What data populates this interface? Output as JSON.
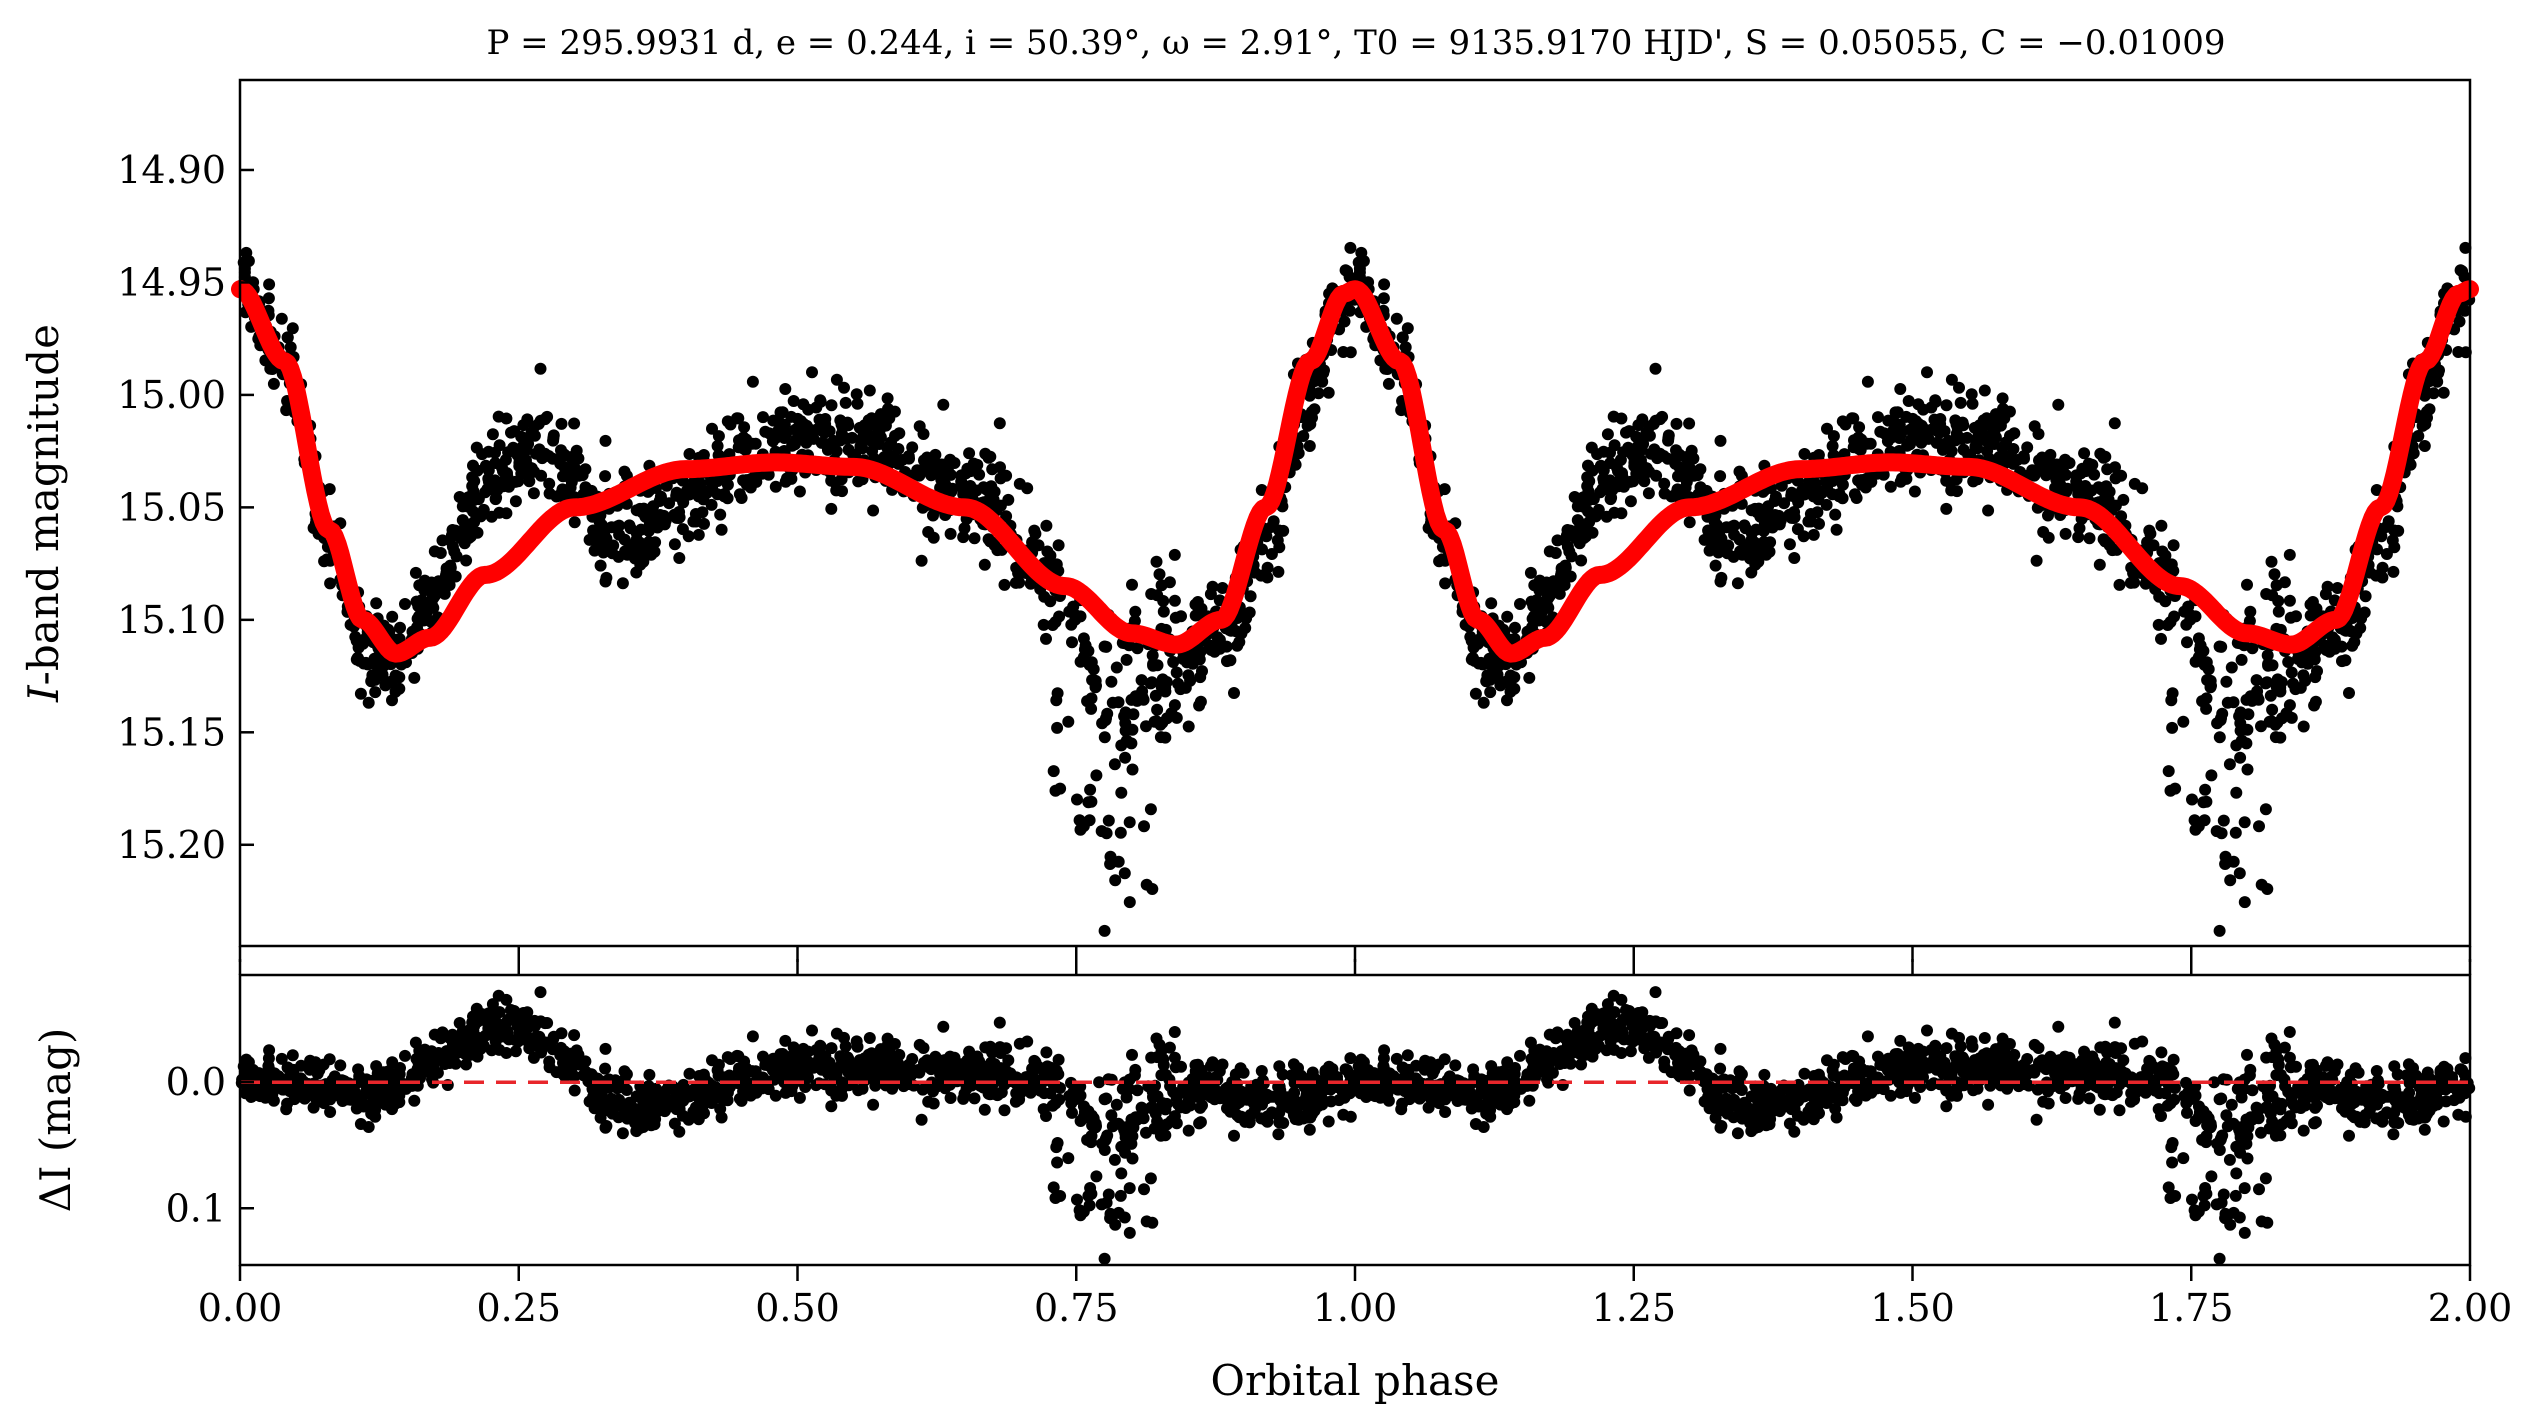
{
  "chart_data": [
    {
      "type": "scatter",
      "title": "P = 295.9931 d, e = 0.244, i = 50.39°, ω = 2.91°, T0 = 9135.9170 HJD', S = 0.05055, C = −0.01009",
      "xlabel": "",
      "ylabel_prefix": "I",
      "ylabel_suffix": "-band magnitude",
      "y_inverted": true,
      "xlim": [
        0.0,
        2.0
      ],
      "ylim": [
        14.86,
        15.245
      ],
      "yticks": [
        14.9,
        14.95,
        15.0,
        15.05,
        15.1,
        15.15,
        15.2
      ],
      "ytick_labels": [
        "14.90",
        "14.95",
        "15.00",
        "15.05",
        "15.10",
        "15.15",
        "15.20"
      ],
      "xticks": [
        0.0,
        0.25,
        0.5,
        0.75,
        1.0,
        1.25,
        1.5,
        1.75,
        2.0
      ],
      "grid": false,
      "series": [
        {
          "kind": "observed points",
          "color": "#000000",
          "note": "dense cloud of ~thousands of I-band measurements folded on the orbital period, plotted twice (phase 0–2)"
        },
        {
          "kind": "model curve",
          "color": "#ff0000",
          "x": [
            0.0,
            0.04,
            0.08,
            0.11,
            0.14,
            0.17,
            0.22,
            0.3,
            0.4,
            0.48,
            0.55,
            0.65,
            0.74,
            0.8,
            0.84,
            0.88,
            0.92,
            0.96,
            0.99,
            1.0
          ],
          "y": [
            14.953,
            14.985,
            15.06,
            15.1,
            15.115,
            15.108,
            15.08,
            15.05,
            15.033,
            15.03,
            15.032,
            15.05,
            15.085,
            15.106,
            15.111,
            15.1,
            15.05,
            14.985,
            14.955,
            14.953
          ]
        }
      ]
    },
    {
      "type": "scatter",
      "xlabel": "Orbital phase",
      "ylabel_prefix": "ΔI",
      "ylabel_suffix": " (mag)",
      "y_inverted": true,
      "xlim": [
        0.0,
        2.0
      ],
      "ylim": [
        -0.085,
        0.145
      ],
      "yticks": [
        0.0,
        0.1
      ],
      "ytick_labels": [
        "0.0",
        "0.1"
      ],
      "xticks": [
        0.0,
        0.25,
        0.5,
        0.75,
        1.0,
        1.25,
        1.5,
        1.75,
        2.0
      ],
      "xtick_labels": [
        "0.00",
        "0.25",
        "0.50",
        "0.75",
        "1.00",
        "1.25",
        "1.50",
        "1.75",
        "2.00"
      ],
      "grid": false,
      "series": [
        {
          "kind": "residual points",
          "color": "#000000"
        },
        {
          "kind": "zero line",
          "color": "#e8262b",
          "style": "dashed",
          "y": 0.0
        }
      ]
    }
  ]
}
